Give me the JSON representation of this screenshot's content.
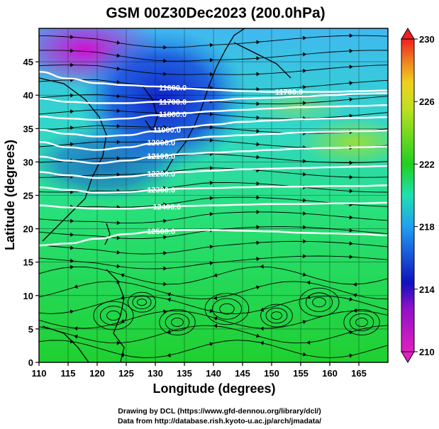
{
  "title": "GSM 00Z30Dec2023 (200.0hPa)",
  "xlabel": "Longitude (degrees)",
  "ylabel": "Latitude  (degrees)",
  "x_ticks": [
    "110",
    "115",
    "120",
    "125",
    "130",
    "135",
    "140",
    "145",
    "150",
    "155",
    "160",
    "165"
  ],
  "y_ticks": [
    "0",
    "5",
    "10",
    "15",
    "20",
    "25",
    "30",
    "35",
    "40",
    "45"
  ],
  "colorbar": {
    "ticks": [
      "210",
      "214",
      "218",
      "222",
      "226",
      "230"
    ],
    "min": 210,
    "max": 230,
    "colors": [
      "#e020c0",
      "#1010c0",
      "#20a0f0",
      "#20e0c0",
      "#20d020",
      "#a0e020",
      "#f0e020",
      "#f08020",
      "#f02020"
    ]
  },
  "contour_labels": [
    "11600.0",
    "11700.0",
    "11700.0",
    "11800.0",
    "11900.0",
    "12000.0",
    "12100.0",
    "12200.0",
    "12300.0",
    "12400.0",
    "12500.0"
  ],
  "credits": [
    "Drawing by DCL (https://www.gfd-dennou.org/library/dcl/)",
    "Data from http://database.rish.kyoto-u.ac.jp/arch/jmadata/"
  ],
  "chart_data": {
    "type": "heatmap",
    "title": "GSM 00Z30Dec2023 (200.0hPa)",
    "xlabel": "Longitude (degrees)",
    "ylabel": "Latitude  (degrees)",
    "xlim": [
      110,
      170
    ],
    "ylim": [
      0,
      50
    ],
    "colorbar_range": [
      210,
      230
    ],
    "contours": [
      {
        "level": 11600.0,
        "lat": [
          43.5,
          42.5,
          41.8,
          41.5,
          41.3,
          41.0,
          40.8,
          40.6,
          40.5,
          40.5,
          40.5,
          40.6,
          40.7
        ]
      },
      {
        "level": 11700.0,
        "lat": [
          39.5,
          39.0,
          38.8,
          38.8,
          39.0,
          39.0,
          39.2,
          39.5,
          39.6,
          39.8,
          40.0,
          40.2,
          40.3
        ]
      },
      {
        "level": 11800.0,
        "lat": [
          36.8,
          36.5,
          36.3,
          36.5,
          37.0,
          37.3,
          37.6,
          37.8,
          38.0,
          38.2,
          38.3,
          38.4,
          38.5
        ]
      },
      {
        "level": 11900.0,
        "lat": [
          34.8,
          34.2,
          33.8,
          34.0,
          34.6,
          35.2,
          35.6,
          36.0,
          36.2,
          36.4,
          36.5,
          36.6,
          36.7
        ]
      },
      {
        "level": 12000.0,
        "lat": [
          33.0,
          32.2,
          31.8,
          32.2,
          32.8,
          33.4,
          33.8,
          34.0,
          34.2,
          34.4,
          34.5,
          34.6,
          34.7
        ]
      },
      {
        "level": 12100.0,
        "lat": [
          30.8,
          30.2,
          29.8,
          30.2,
          30.8,
          31.2,
          31.4,
          31.6,
          31.8,
          32.0,
          32.1,
          32.2,
          32.3
        ]
      },
      {
        "level": 12200.0,
        "lat": [
          28.5,
          28.0,
          27.6,
          27.8,
          28.2,
          28.5,
          28.7,
          28.9,
          29.0,
          29.1,
          29.2,
          29.3,
          29.4
        ]
      },
      {
        "level": 12300.0,
        "lat": [
          26.2,
          25.8,
          25.4,
          25.5,
          25.8,
          26.0,
          26.1,
          26.2,
          26.3,
          26.3,
          26.4,
          26.4,
          26.5
        ]
      },
      {
        "level": 12400.0,
        "lat": [
          23.5,
          23.2,
          23.0,
          23.0,
          23.2,
          23.4,
          23.5,
          23.6,
          23.7,
          23.7,
          23.8,
          23.8,
          23.9
        ]
      },
      {
        "level": 12500.0,
        "lat": [
          17.5,
          17.8,
          18.5,
          19.2,
          19.6,
          19.8,
          19.8,
          19.7,
          19.6,
          19.4,
          19.3,
          19.2,
          19.0
        ]
      }
    ],
    "contour_lons": [
      110,
      115,
      120,
      125,
      130,
      135,
      140,
      145,
      150,
      155,
      160,
      165,
      170
    ]
  }
}
